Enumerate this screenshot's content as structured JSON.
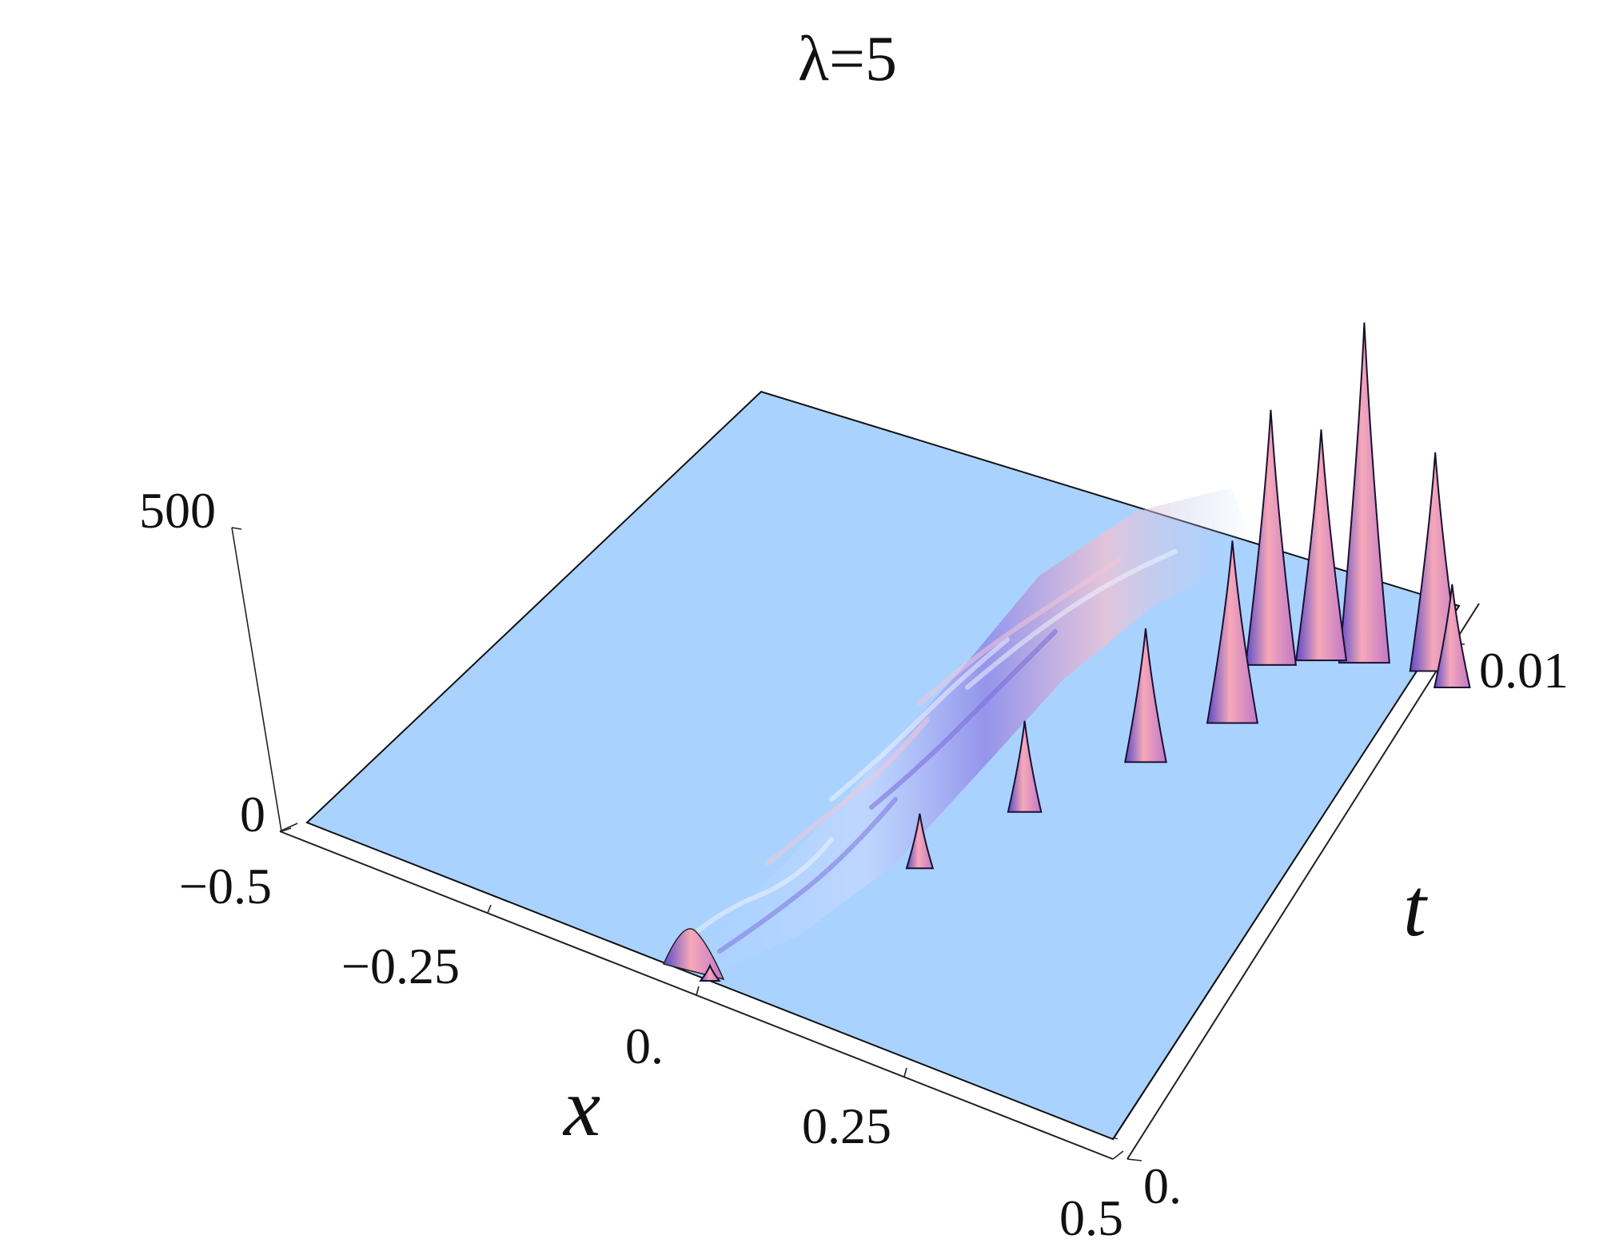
{
  "chart_data": {
    "type": "surface3d",
    "title": "λ=5",
    "xlabel": "x",
    "ylabel": "t",
    "zlabel": "",
    "x_ticks": [
      "−0.5",
      "−0.25",
      "0.",
      "0.25",
      "0.5"
    ],
    "t_ticks": [
      "0.",
      "0.01"
    ],
    "z_ticks": [
      "0",
      "500"
    ],
    "xlim": [
      -0.5,
      0.5
    ],
    "tlim": [
      0,
      0.0125
    ],
    "zlim": [
      0,
      500
    ],
    "surface_color": "#aad2ff",
    "peak_color": "#f0a0b0",
    "trough_color": "#6a55d0",
    "features": [
      {
        "x": 0.0,
        "t": 0.0,
        "z": 25
      },
      {
        "x": 0.08,
        "t": 0.004,
        "z": 90
      },
      {
        "x": 0.12,
        "t": 0.006,
        "z": 150
      },
      {
        "x": 0.18,
        "t": 0.008,
        "z": 220
      },
      {
        "x": 0.22,
        "t": 0.0095,
        "z": 300
      },
      {
        "x": 0.2,
        "t": 0.011,
        "z": 420
      },
      {
        "x": 0.24,
        "t": 0.0115,
        "z": 380
      },
      {
        "x": 0.28,
        "t": 0.0118,
        "z": 560
      },
      {
        "x": 0.35,
        "t": 0.0122,
        "z": 360
      },
      {
        "x": 0.38,
        "t": 0.012,
        "z": 170
      }
    ]
  }
}
